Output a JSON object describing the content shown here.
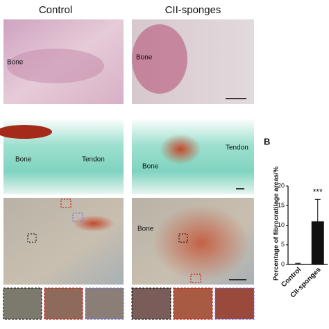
{
  "panel_a": {
    "column_titles": [
      "Control",
      "CII-sponges"
    ],
    "row1": {
      "control_label": "Bone",
      "sponge_label": "Bone"
    },
    "row2": {
      "control_labels": [
        "Bone",
        "Tendon"
      ],
      "sponge_labels": [
        "Bone",
        "Tendon"
      ]
    },
    "row3": {
      "sponge_label": "Bone"
    }
  },
  "chart_data": {
    "type": "bar",
    "panel_label": "B",
    "y_label": "Percentage of fibrocratilage areas/%",
    "categories": [
      "Control",
      "CII-sponges"
    ],
    "values": [
      0.1,
      11
    ],
    "errors": [
      0.2,
      5.6
    ],
    "color": "#111111",
    "ylim": [
      0,
      20
    ],
    "yticks": [
      0,
      5,
      10,
      15,
      20
    ],
    "annotation": "***"
  }
}
